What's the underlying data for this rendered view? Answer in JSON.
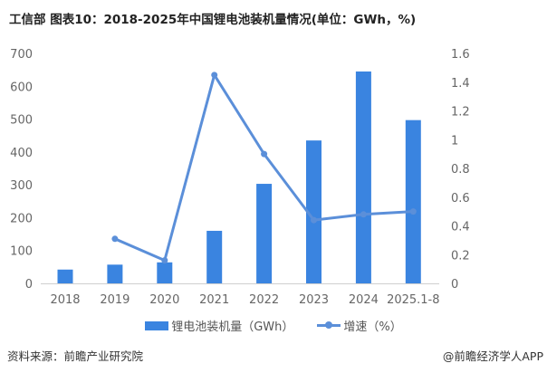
{
  "chart_data": {
    "type": "bar+line",
    "title": "工信部 图表10：2018-2025年中国锂电池装机量情况(单位：GWh，%)",
    "categories": [
      "2018",
      "2019",
      "2020",
      "2021",
      "2022",
      "2023",
      "2024",
      "2025.1-8"
    ],
    "series": [
      {
        "name": "锂电池装机量（GWh）",
        "type": "bar",
        "axis": "left",
        "color": "#3a84e0",
        "values": [
          42,
          57,
          64,
          160,
          303,
          435,
          645,
          497
        ]
      },
      {
        "name": "增速（%）",
        "type": "line",
        "axis": "right",
        "color": "#5b8fd9",
        "values": [
          null,
          0.31,
          0.16,
          1.45,
          0.9,
          0.44,
          0.48,
          0.5
        ]
      }
    ],
    "left_axis": {
      "ylim": [
        0,
        700
      ],
      "ticks": [
        "0",
        "100",
        "200",
        "300",
        "400",
        "500",
        "600",
        "700"
      ]
    },
    "right_axis": {
      "ylim": [
        0,
        1.6
      ],
      "ticks": [
        "0",
        "0.2",
        "0.4",
        "0.6",
        "0.8",
        "1",
        "1.2",
        "1.4",
        "1.6"
      ]
    },
    "grid": false,
    "legend": "bottom"
  },
  "footer": {
    "source": "资料来源：前瞻产业研究院",
    "credit": "@前瞻经济学人APP"
  }
}
